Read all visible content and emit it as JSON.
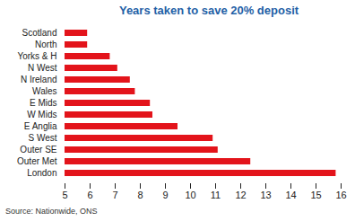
{
  "chart_data": {
    "type": "bar",
    "orientation": "horizontal",
    "title": "Years taken to save 20% deposit",
    "source": "Source: Nationwide, ONS",
    "categories": [
      "Scotland",
      "North",
      "Yorks & H",
      "N West",
      "N Ireland",
      "Wales",
      "E Mids",
      "W Mids",
      "E Anglia",
      "S West",
      "Outer SE",
      "Outer Met",
      "London"
    ],
    "values": [
      5.9,
      5.9,
      6.8,
      7.1,
      7.6,
      7.8,
      8.4,
      8.5,
      9.5,
      10.9,
      11.1,
      12.4,
      15.8
    ],
    "color": "#e3141b",
    "xlim": [
      5,
      16
    ],
    "xticks": [
      5,
      6,
      7,
      8,
      9,
      10,
      11,
      12,
      13,
      14,
      15,
      16
    ],
    "grid": false
  }
}
